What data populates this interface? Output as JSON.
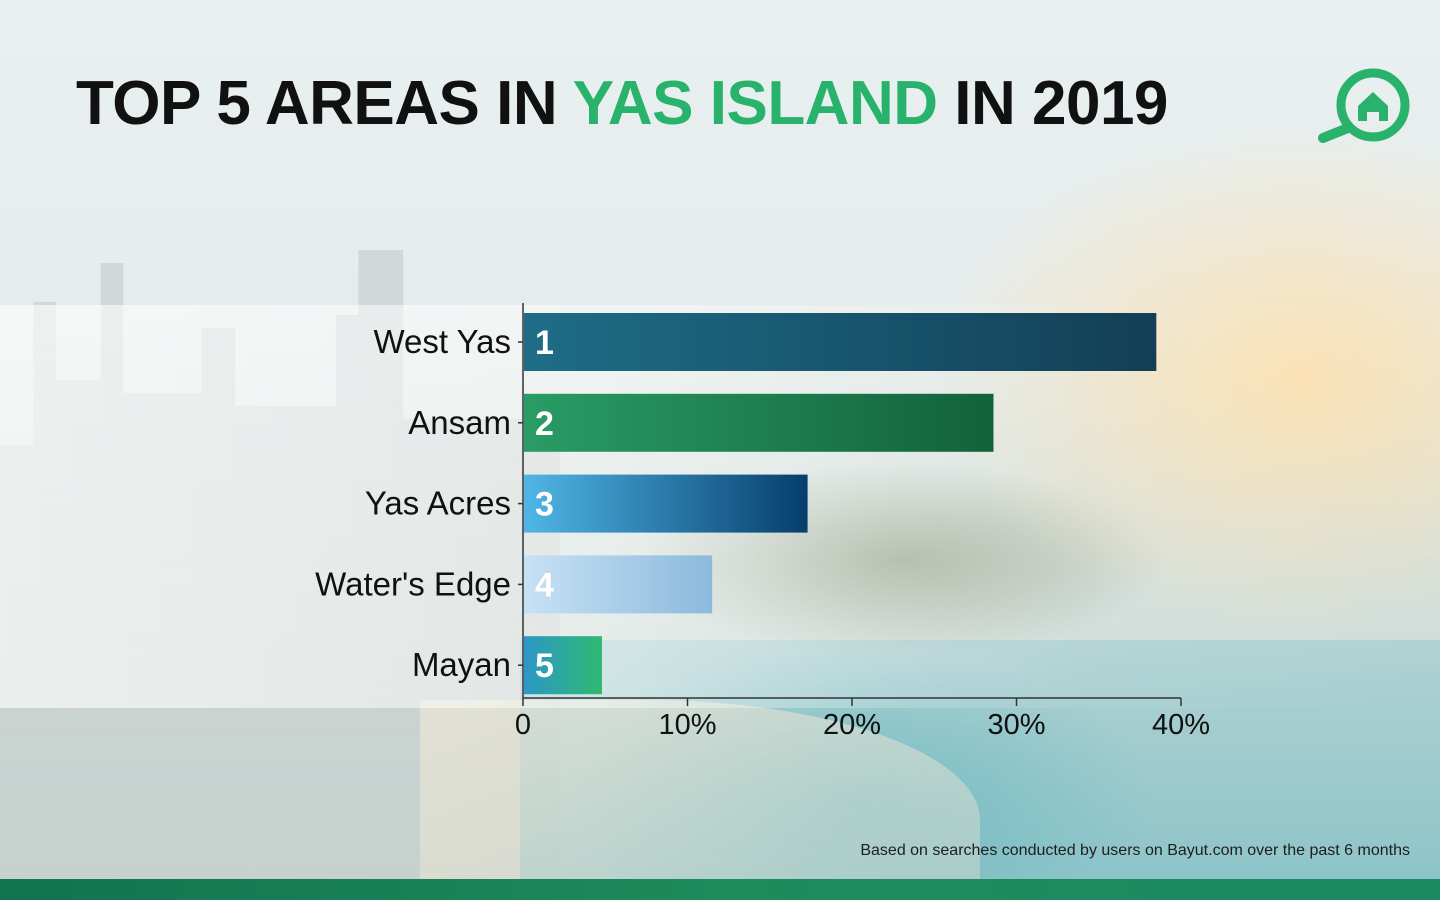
{
  "title": {
    "part1": "TOP 5 AREAS IN",
    "accent": "YAS ISLAND",
    "part2": "IN 2019"
  },
  "colors": {
    "accent": "#28b26c",
    "title": "#111111",
    "footer_bar": "#1a7f58"
  },
  "logo": {
    "icon": "house-search-icon"
  },
  "footnote": "Based on searches conducted by users on Bayut.com over the past 6 months",
  "chart_data": {
    "type": "bar",
    "orientation": "horizontal",
    "categories": [
      "West Yas",
      "Ansam",
      "Yas Acres",
      "Water's Edge",
      "Mayan"
    ],
    "ranks": [
      "1",
      "2",
      "3",
      "4",
      "5"
    ],
    "values": [
      38.5,
      28.6,
      17.3,
      11.5,
      4.8
    ],
    "xlim": [
      0,
      40
    ],
    "xticks": [
      0,
      10,
      20,
      30,
      40
    ],
    "xtick_labels": [
      "0",
      "10%",
      "20%",
      "30%",
      "40%"
    ],
    "grid": false,
    "bar_colors": [
      [
        "#1e6d87",
        "#123f55"
      ],
      [
        "#2a9c65",
        "#126239"
      ],
      [
        "#50b6e6",
        "#063e6c"
      ],
      [
        "#c7e1f4",
        "#8cbadd"
      ],
      [
        "#2c97c8",
        "#2eba70"
      ]
    ]
  }
}
